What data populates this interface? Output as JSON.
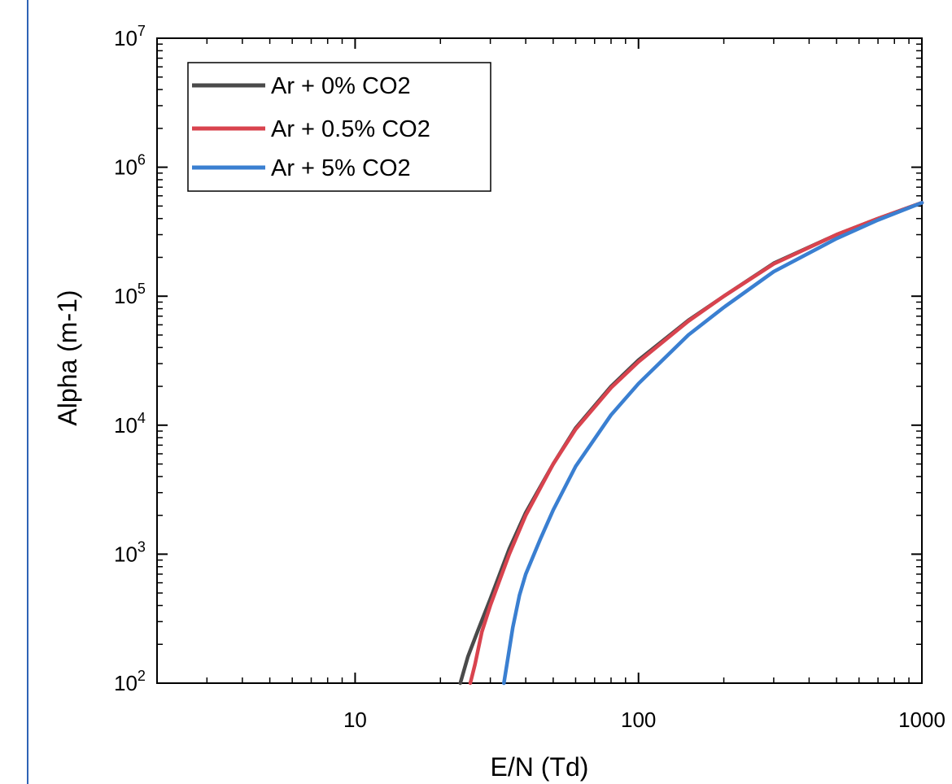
{
  "chart_data": {
    "type": "line",
    "title": "",
    "xlabel": "E/N (Td)",
    "ylabel": "Alpha (m-1)",
    "xscale": "log",
    "yscale": "log",
    "xlim": [
      2,
      1000
    ],
    "ylim": [
      100,
      10000000
    ],
    "x_ticks": [
      {
        "value": 10,
        "label": "10"
      },
      {
        "value": 100,
        "label": "100"
      },
      {
        "value": 1000,
        "label": "1000"
      }
    ],
    "y_ticks": [
      {
        "value": 100,
        "base": "10",
        "exp": "2"
      },
      {
        "value": 1000,
        "base": "10",
        "exp": "3"
      },
      {
        "value": 10000,
        "base": "10",
        "exp": "4"
      },
      {
        "value": 100000,
        "base": "10",
        "exp": "5"
      },
      {
        "value": 1000000,
        "base": "10",
        "exp": "6"
      },
      {
        "value": 10000000,
        "base": "10",
        "exp": "7"
      }
    ],
    "grid": false,
    "legend_position": "top-left",
    "series": [
      {
        "name": "Ar + 0% CO2",
        "color": "#4a4a4a",
        "points": [
          [
            23.5,
            100
          ],
          [
            25,
            160
          ],
          [
            27,
            250
          ],
          [
            30,
            450
          ],
          [
            35,
            1100
          ],
          [
            40,
            2100
          ],
          [
            50,
            5000
          ],
          [
            60,
            9500
          ],
          [
            80,
            20000
          ],
          [
            100,
            32000
          ],
          [
            150,
            65000
          ],
          [
            200,
            100000
          ],
          [
            300,
            180000
          ],
          [
            500,
            300000
          ],
          [
            700,
            400000
          ],
          [
            1000,
            530000
          ]
        ]
      },
      {
        "name": "Ar + 0.5% CO2",
        "color": "#d9434e",
        "points": [
          [
            25.5,
            100
          ],
          [
            26.5,
            140
          ],
          [
            28,
            250
          ],
          [
            30,
            400
          ],
          [
            35,
            1000
          ],
          [
            40,
            2000
          ],
          [
            50,
            5000
          ],
          [
            60,
            9300
          ],
          [
            80,
            19500
          ],
          [
            100,
            31000
          ],
          [
            150,
            64000
          ],
          [
            200,
            100000
          ],
          [
            300,
            178000
          ],
          [
            500,
            300000
          ],
          [
            700,
            400000
          ],
          [
            1000,
            530000
          ]
        ]
      },
      {
        "name": "Ar + 5% CO2",
        "color": "#3a7fd1",
        "points": [
          [
            33.5,
            100
          ],
          [
            36,
            270
          ],
          [
            38,
            480
          ],
          [
            40,
            700
          ],
          [
            45,
            1300
          ],
          [
            50,
            2200
          ],
          [
            60,
            4800
          ],
          [
            80,
            12000
          ],
          [
            100,
            21000
          ],
          [
            150,
            50000
          ],
          [
            200,
            82000
          ],
          [
            300,
            155000
          ],
          [
            500,
            280000
          ],
          [
            700,
            390000
          ],
          [
            1000,
            530000
          ]
        ]
      }
    ]
  }
}
